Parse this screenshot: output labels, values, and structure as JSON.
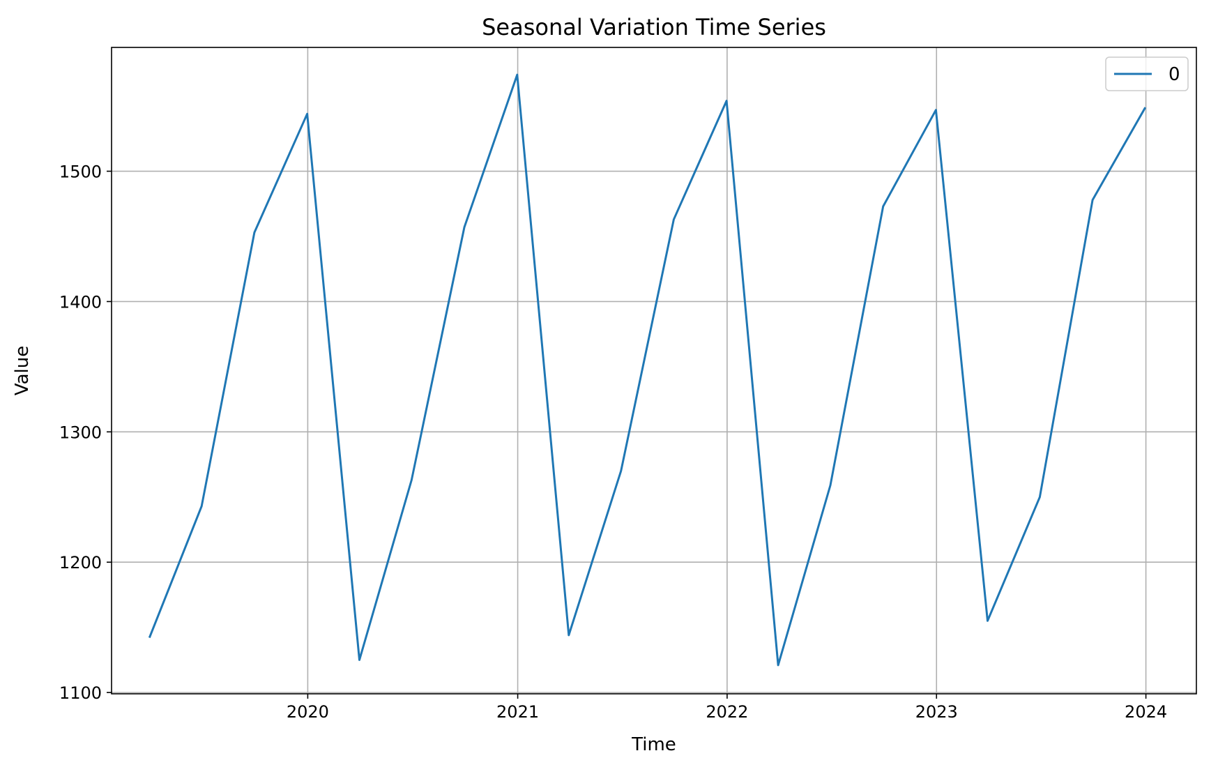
{
  "chart_data": {
    "type": "line",
    "title": "Seasonal Variation Time Series",
    "xlabel": "Time",
    "ylabel": "Value",
    "x_ticks": [
      "2020",
      "2021",
      "2022",
      "2023",
      "2024"
    ],
    "y_ticks": [
      "1100",
      "1200",
      "1300",
      "1400",
      "1500"
    ],
    "xlim": [
      "2019-01-24",
      "2024-03-29"
    ],
    "ylim": [
      1099,
      1595
    ],
    "grid": true,
    "legend_position": "upper right",
    "series": [
      {
        "name": "0",
        "color": "#1f77b4",
        "x": [
          "2019-03-31",
          "2019-06-30",
          "2019-09-30",
          "2019-12-31",
          "2020-03-31",
          "2020-06-30",
          "2020-09-30",
          "2020-12-31",
          "2021-03-31",
          "2021-06-30",
          "2021-09-30",
          "2021-12-31",
          "2022-03-31",
          "2022-06-30",
          "2022-09-30",
          "2022-12-31",
          "2023-03-31",
          "2023-06-30",
          "2023-09-30",
          "2023-12-31"
        ],
        "values": [
          1142,
          1243,
          1453,
          1544,
          1125,
          1263,
          1457,
          1574,
          1144,
          1270,
          1463,
          1554,
          1121,
          1259,
          1473,
          1547,
          1155,
          1250,
          1478,
          1549
        ]
      }
    ]
  }
}
